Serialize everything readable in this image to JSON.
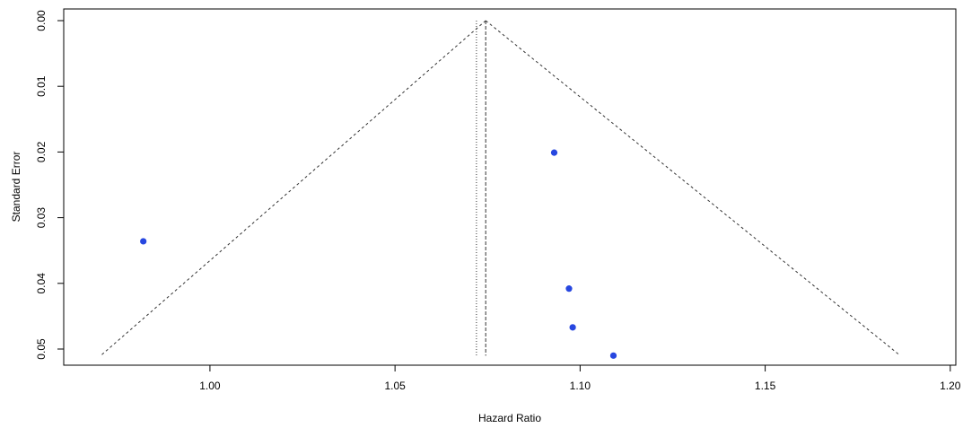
{
  "chart_data": {
    "type": "scatter",
    "subtype": "funnel-plot",
    "xlabel": "Hazard Ratio",
    "ylabel": "Standard Error",
    "xlim": [
      0.9605,
      1.2015
    ],
    "ylim": [
      0.0,
      0.0525
    ],
    "y_reversed": true,
    "x_ticks": [
      {
        "value": 1.0,
        "label": "1.00"
      },
      {
        "value": 1.05,
        "label": "1.05"
      },
      {
        "value": 1.1,
        "label": "1.10"
      },
      {
        "value": 1.15,
        "label": "1.15"
      },
      {
        "value": 1.2,
        "label": "1.20"
      }
    ],
    "y_ticks": [
      {
        "value": 0.0,
        "label": "0.00"
      },
      {
        "value": 0.01,
        "label": "0.01"
      },
      {
        "value": 0.02,
        "label": "0.02"
      },
      {
        "value": 0.03,
        "label": "0.03"
      },
      {
        "value": 0.04,
        "label": "0.04"
      },
      {
        "value": 0.05,
        "label": "0.05"
      }
    ],
    "points": [
      {
        "x": 0.982,
        "y": 0.0336
      },
      {
        "x": 1.093,
        "y": 0.0201
      },
      {
        "x": 1.097,
        "y": 0.0408
      },
      {
        "x": 1.098,
        "y": 0.0467
      },
      {
        "x": 1.109,
        "y": 0.051
      }
    ],
    "center_line": {
      "x": 1.0745
    },
    "reference_line": {
      "x": 1.072
    },
    "funnel": {
      "apex": {
        "x": 1.0745,
        "y": 0.0
      },
      "base_y": 0.051,
      "base_left_x": 0.9705,
      "base_right_x": 1.1865
    },
    "grid": false,
    "legend": "none",
    "colors": {
      "points": "#2747e0",
      "lines": "#333333",
      "axes": "#000000"
    }
  }
}
